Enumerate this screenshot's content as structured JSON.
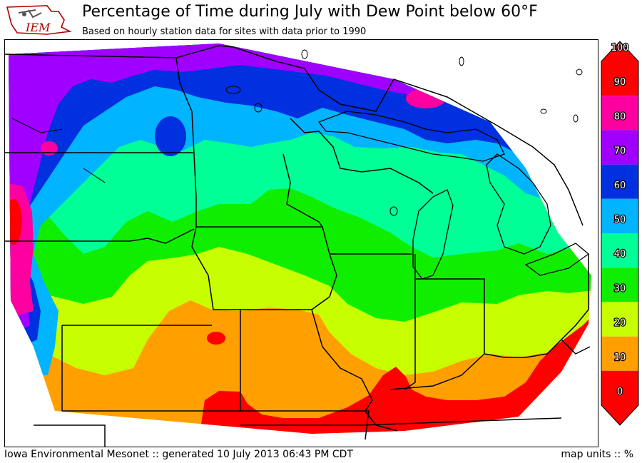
{
  "header": {
    "title": "Percentage of Time during July with Dew Point below 60°F",
    "subtitle": "Based on hourly station data for sites with data prior to 1990",
    "logo_text": "IEM"
  },
  "footer": {
    "credit": "Iowa Environmental Mesonet :: generated 10 July 2013 06:43 PM CDT",
    "units": "map units :: %"
  },
  "legend": {
    "ticks": [
      "100",
      "90",
      "80",
      "70",
      "60",
      "50",
      "40",
      "30",
      "20",
      "10",
      "0"
    ],
    "colors": [
      "#ff0000",
      "#ff00a0",
      "#a000ff",
      "#0030e0",
      "#00b4ff",
      "#00ff96",
      "#10ee00",
      "#c8ff00",
      "#ffa000",
      "#ff0000"
    ]
  },
  "palette": {
    "band_0_10": "#ff0000",
    "band_10_20": "#ffa000",
    "band_20_30": "#c8ff00",
    "band_30_40": "#10ee00",
    "band_40_50": "#00ff96",
    "band_50_60": "#00b4ff",
    "band_60_70": "#0030e0",
    "band_70_80": "#a000ff",
    "band_80_90": "#ff00a0",
    "band_90_100": "#ff0000"
  }
}
